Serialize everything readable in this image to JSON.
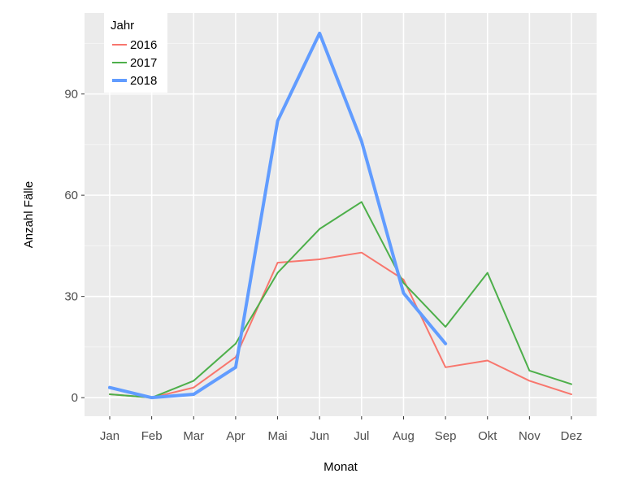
{
  "chart_data": {
    "type": "line",
    "title": "",
    "xlabel": "Monat",
    "ylabel": "Anzahl Fälle",
    "categories": [
      "Jan",
      "Feb",
      "Mar",
      "Apr",
      "Mai",
      "Jun",
      "Jul",
      "Aug",
      "Sep",
      "Okt",
      "Nov",
      "Dez"
    ],
    "yticks": [
      0,
      30,
      60,
      90
    ],
    "ylim": [
      -5.5,
      114
    ],
    "grid": true,
    "legend": {
      "title": "Jahr",
      "position": "top-left"
    },
    "series": [
      {
        "name": "2016",
        "color": "#f8766d",
        "values": [
          1,
          0,
          3,
          12,
          40,
          41,
          43,
          35,
          9,
          11,
          5,
          1
        ]
      },
      {
        "name": "2017",
        "color": "#4daf4a",
        "values": [
          1,
          0,
          5,
          16,
          37,
          50,
          58,
          34,
          21,
          37,
          8,
          4
        ]
      },
      {
        "name": "2018",
        "color": "#619cff",
        "values": [
          3,
          0,
          1,
          9,
          82,
          108,
          76,
          31,
          16,
          null,
          null,
          null
        ]
      }
    ]
  }
}
